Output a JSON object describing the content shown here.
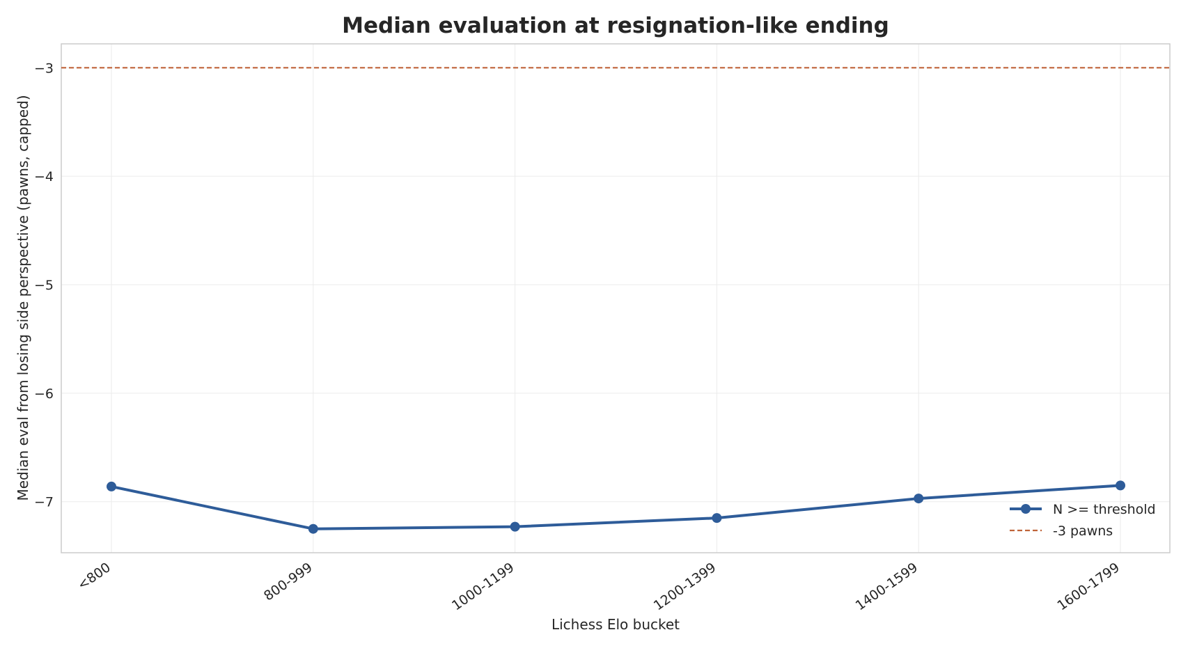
{
  "chart_data": {
    "type": "line",
    "title": "Median evaluation at resignation-like ending",
    "xlabel": "Lichess Elo bucket",
    "ylabel": "Median eval from losing side perspective (pawns, capped)",
    "categories": [
      "<800",
      "800-999",
      "1000-1199",
      "1200-1399",
      "1400-1599",
      "1600-1799"
    ],
    "series": [
      {
        "name": "N >= threshold",
        "values": [
          -6.86,
          -7.25,
          -7.23,
          -7.15,
          -6.97,
          -6.85
        ],
        "color": "#2e5c99"
      }
    ],
    "reference_lines": [
      {
        "name": "-3 pawns",
        "y": -3,
        "color": "#c0643a",
        "style": "dashed"
      }
    ],
    "yticks": [
      -3,
      -4,
      -5,
      -6,
      -7
    ],
    "ytick_labels": [
      "−3",
      "−4",
      "−5",
      "−6",
      "−7"
    ],
    "ylim": [
      -7.47,
      -2.78
    ],
    "grid": true,
    "legend": {
      "position": "lower-right"
    }
  }
}
